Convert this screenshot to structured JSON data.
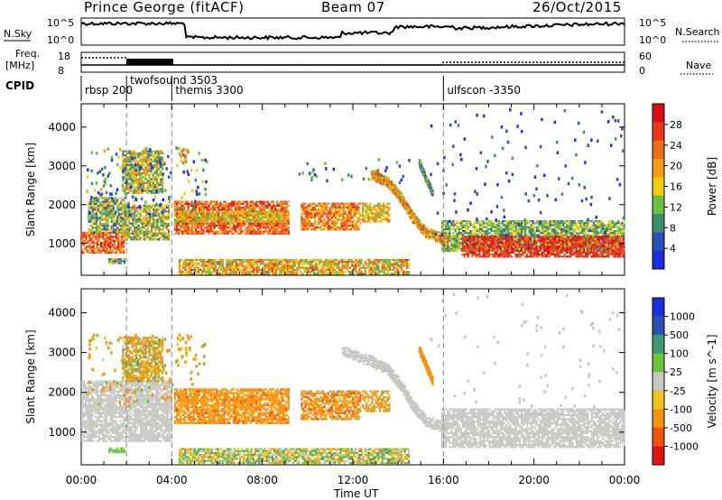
{
  "header": {
    "station": "Prince George (fitACF)",
    "beam": "Beam 07",
    "date": "26/Oct/2015"
  },
  "top_panels": {
    "nsky_label": "N.Sky",
    "nsky_ticks": [
      "10^5",
      "10^0"
    ],
    "nsearch_label": "N.Search",
    "nsearch_ticks": [
      "10^5",
      "10^0"
    ],
    "freq_label": "Freq.",
    "freq_unit": "[MHz]",
    "freq_ticks": [
      "18",
      "8"
    ],
    "nave_label": "Nave",
    "nave_ticks": [
      "60",
      "0"
    ],
    "cpid_label": "CPID"
  },
  "cpid_programs": [
    {
      "name": "rbsp 200",
      "start_hour": 0
    },
    {
      "name": "twofsound 3503",
      "start_hour": 2
    },
    {
      "name": "themis 3300",
      "start_hour": 4
    },
    {
      "name": "ulfscon -3350",
      "start_hour": 16
    }
  ],
  "chart_data": [
    {
      "type": "heatmap",
      "quantity": "Power",
      "xlabel": "Time UT",
      "ylabel": "Slant Range [km]",
      "xlim": [
        0,
        24
      ],
      "ylim": [
        180,
        4600
      ],
      "y_ticks": [
        "1000",
        "2000",
        "3000",
        "4000"
      ],
      "colorbar_label": "Power [dB]",
      "colorbar_ticks": [
        "4",
        "8",
        "12",
        "16",
        "20",
        "24",
        "28"
      ],
      "colorbar_range": [
        0,
        32
      ],
      "colors": [
        "#1c2ee0",
        "#2950b4",
        "#3f8e6a",
        "#6cbf3f",
        "#f2cc0f",
        "#f59a13",
        "#ef6a14",
        "#e8351b",
        "#d60f10"
      ],
      "dashed_times": [
        2,
        4,
        16
      ],
      "regions": [
        {
          "t0": 0.0,
          "t1": 1.9,
          "r0": 780,
          "r1": 1300,
          "value": 24,
          "range_value": 6
        },
        {
          "t0": 0.3,
          "t1": 1.9,
          "r0": 1300,
          "r1": 2200,
          "value": 12,
          "range_value": 8
        },
        {
          "t0": 1.9,
          "t1": 3.9,
          "r0": 1100,
          "r1": 2000,
          "value": 14,
          "range_value": 8
        },
        {
          "t0": 1.8,
          "t1": 3.6,
          "r0": 2300,
          "r1": 3400,
          "value": 14,
          "range_value": 8
        },
        {
          "t0": 1.2,
          "t1": 1.9,
          "r0": 480,
          "r1": 620,
          "value": 12,
          "range_value": 8
        },
        {
          "t0": 4.1,
          "t1": 9.2,
          "r0": 1250,
          "r1": 2100,
          "value": 24,
          "range_value": 6
        },
        {
          "t0": 4.1,
          "t1": 9.2,
          "r0": 1550,
          "r1": 1850,
          "value": 17,
          "range_value": 6
        },
        {
          "t0": 9.7,
          "t1": 12.3,
          "r0": 1350,
          "r1": 2050,
          "value": 22,
          "range_value": 6
        },
        {
          "t0": 12.4,
          "t1": 13.6,
          "r0": 1550,
          "r1": 2050,
          "value": 18,
          "range_value": 6
        },
        {
          "t0": 4.3,
          "t1": 14.5,
          "r0": 240,
          "r1": 600,
          "value": 18,
          "range_value": 8
        },
        {
          "t0": 15.9,
          "t1": 24.0,
          "r0": 800,
          "r1": 1600,
          "value": 12,
          "range_value": 6
        },
        {
          "t0": 16.8,
          "t1": 24.0,
          "r0": 650,
          "r1": 1200,
          "value": 27,
          "range_value": 4
        }
      ],
      "tracks": [
        {
          "points": [
            [
              12.8,
              2800
            ],
            [
              13.5,
              2600
            ],
            [
              14.1,
              2200
            ],
            [
              14.6,
              1700
            ],
            [
              15.2,
              1300
            ],
            [
              16.2,
              1100
            ]
          ],
          "width": 260,
          "value": 20
        },
        {
          "points": [
            [
              14.9,
              3100
            ],
            [
              15.2,
              2700
            ],
            [
              15.5,
              2300
            ]
          ],
          "width": 180,
          "value": 10
        }
      ],
      "scatter": [
        {
          "t0": 0.2,
          "t1": 5.5,
          "r0": 1700,
          "r1": 3500,
          "count": 170,
          "value": 10,
          "range_value": 10
        },
        {
          "t0": 4.2,
          "t1": 4.7,
          "r0": 3100,
          "r1": 3500,
          "count": 14,
          "value": 20,
          "range_value": 8
        },
        {
          "t0": 15.4,
          "t1": 24.0,
          "r0": 1200,
          "r1": 4500,
          "count": 120,
          "value": 5,
          "range_value": 4
        },
        {
          "t0": 9.5,
          "t1": 14.5,
          "r0": 2600,
          "r1": 3200,
          "count": 30,
          "value": 8,
          "range_value": 6
        }
      ]
    },
    {
      "type": "heatmap",
      "quantity": "Velocity",
      "xlabel": "Time UT",
      "ylabel": "Slant Range [km]",
      "xlim": [
        0,
        24
      ],
      "ylim": [
        180,
        4600
      ],
      "x_ticks": [
        "00:00",
        "04:00",
        "08:00",
        "12:00",
        "16:00",
        "20:00",
        "00:00"
      ],
      "y_ticks": [
        "1000",
        "2000",
        "3000",
        "4000"
      ],
      "colorbar_label": "Velocity [m s^-1]",
      "colorbar_ticks": [
        "1000",
        "500",
        "100",
        "25",
        "-25",
        "-100",
        "-500",
        "-1000"
      ],
      "colors": [
        "#e01515",
        "#f2520e",
        "#f5930f",
        "#f1c419",
        "#c7c7c3",
        "#6cc43a",
        "#3e9a72",
        "#2952b0",
        "#1c2ede"
      ],
      "dashed_times": [
        2,
        4,
        16
      ],
      "regions": [
        {
          "t0": 0.0,
          "t1": 4.0,
          "r0": 780,
          "r1": 2300,
          "value": 0,
          "range_value": 10
        },
        {
          "t0": 1.2,
          "t1": 1.9,
          "r0": 480,
          "r1": 620,
          "value": 50,
          "range_value": 30
        },
        {
          "t0": 1.8,
          "t1": 3.6,
          "r0": 2300,
          "r1": 3400,
          "value": -120,
          "range_value": 250
        },
        {
          "t0": 4.1,
          "t1": 9.2,
          "r0": 1250,
          "r1": 2100,
          "value": -300,
          "range_value": 250
        },
        {
          "t0": 9.7,
          "t1": 12.3,
          "r0": 1350,
          "r1": 2050,
          "value": -300,
          "range_value": 350
        },
        {
          "t0": 12.4,
          "t1": 13.6,
          "r0": 1550,
          "r1": 2050,
          "value": -200,
          "range_value": 250
        },
        {
          "t0": 4.3,
          "t1": 14.5,
          "r0": 240,
          "r1": 600,
          "value": 0,
          "range_value": 150
        },
        {
          "t0": 15.9,
          "t1": 24.0,
          "r0": 650,
          "r1": 1600,
          "value": 0,
          "range_value": 10
        }
      ],
      "tracks": [
        {
          "points": [
            [
              11.5,
              3050
            ],
            [
              12.8,
              2800
            ],
            [
              13.5,
              2600
            ],
            [
              14.1,
              2200
            ],
            [
              14.6,
              1700
            ],
            [
              15.2,
              1300
            ],
            [
              16.2,
              1100
            ]
          ],
          "width": 260,
          "value": 0
        },
        {
          "points": [
            [
              14.9,
              3100
            ],
            [
              15.2,
              2700
            ],
            [
              15.5,
              2300
            ]
          ],
          "width": 180,
          "value": -150
        }
      ],
      "scatter": [
        {
          "t0": 0.2,
          "t1": 5.5,
          "r0": 1700,
          "r1": 3500,
          "count": 150,
          "value": -150,
          "range_value": 250
        },
        {
          "t0": 4.2,
          "t1": 4.7,
          "r0": 3100,
          "r1": 3500,
          "count": 14,
          "value": -200,
          "range_value": 150
        },
        {
          "t0": 15.4,
          "t1": 24.0,
          "r0": 1200,
          "r1": 4500,
          "count": 80,
          "value": 0,
          "range_value": 10
        }
      ]
    }
  ]
}
